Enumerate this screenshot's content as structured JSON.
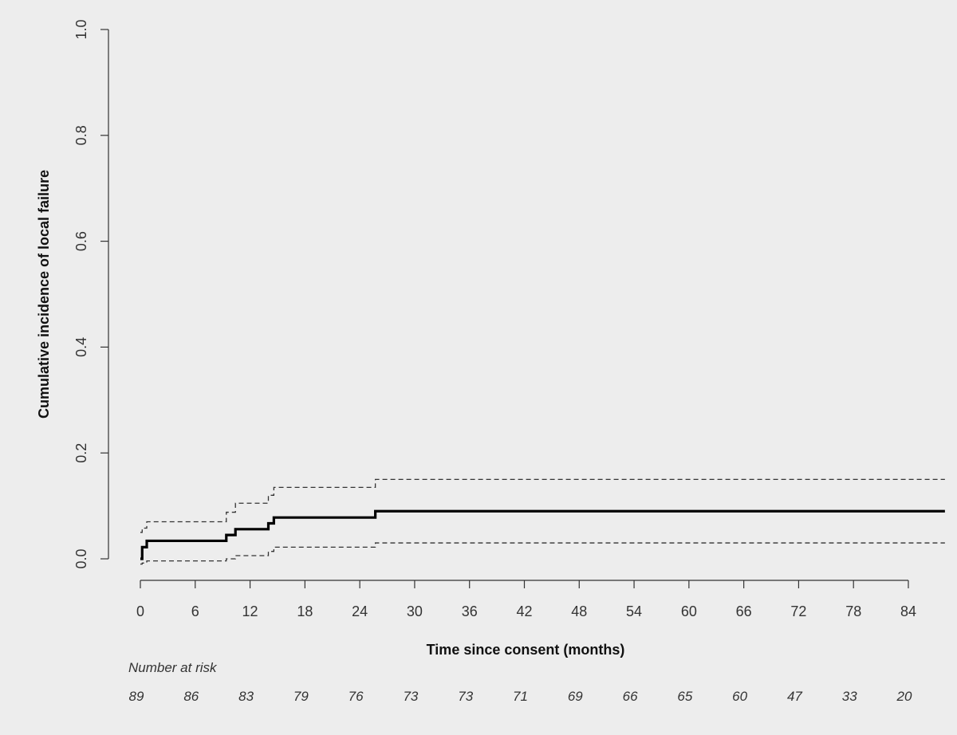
{
  "chart_data": {
    "type": "line",
    "title": "",
    "xlabel": "Time since consent (months)",
    "ylabel": "Cumulative incidence of local failure",
    "xlim": [
      0,
      88
    ],
    "ylim": [
      0,
      1
    ],
    "x_ticks": [
      0,
      6,
      12,
      18,
      24,
      30,
      36,
      42,
      48,
      54,
      60,
      66,
      72,
      78,
      84
    ],
    "y_ticks": [
      0.0,
      0.2,
      0.4,
      0.6,
      0.8,
      1.0
    ],
    "y_tick_labels": [
      "0.0",
      "0.2",
      "0.4",
      "0.6",
      "0.8",
      "1.0"
    ],
    "grid": false,
    "series": [
      {
        "style": "solid-thick",
        "x": [
          0,
          0.2,
          0.7,
          9.4,
          10.4,
          14.0,
          14.6,
          25.7,
          88
        ],
        "y": [
          0.0,
          0.022,
          0.034,
          0.045,
          0.056,
          0.067,
          0.078,
          0.09,
          0.09
        ]
      },
      {
        "style": "dashed-upper",
        "x": [
          0,
          0.2,
          0.7,
          9.4,
          10.4,
          14.0,
          14.6,
          25.7,
          88
        ],
        "y": [
          0.05,
          0.058,
          0.07,
          0.088,
          0.105,
          0.12,
          0.135,
          0.15,
          0.15
        ]
      },
      {
        "style": "dashed-lower",
        "x": [
          0,
          0.2,
          0.7,
          9.4,
          10.4,
          14.0,
          14.6,
          25.7,
          88
        ],
        "y": [
          -0.01,
          -0.008,
          -0.004,
          0.0,
          0.006,
          0.014,
          0.022,
          0.03,
          0.03
        ]
      }
    ],
    "risk_table": {
      "label": "Number at risk",
      "x": [
        0,
        6,
        12,
        18,
        24,
        30,
        36,
        42,
        48,
        54,
        60,
        66,
        72,
        78,
        84
      ],
      "values": [
        89,
        86,
        83,
        79,
        76,
        73,
        73,
        71,
        69,
        66,
        65,
        60,
        47,
        33,
        20
      ]
    }
  }
}
